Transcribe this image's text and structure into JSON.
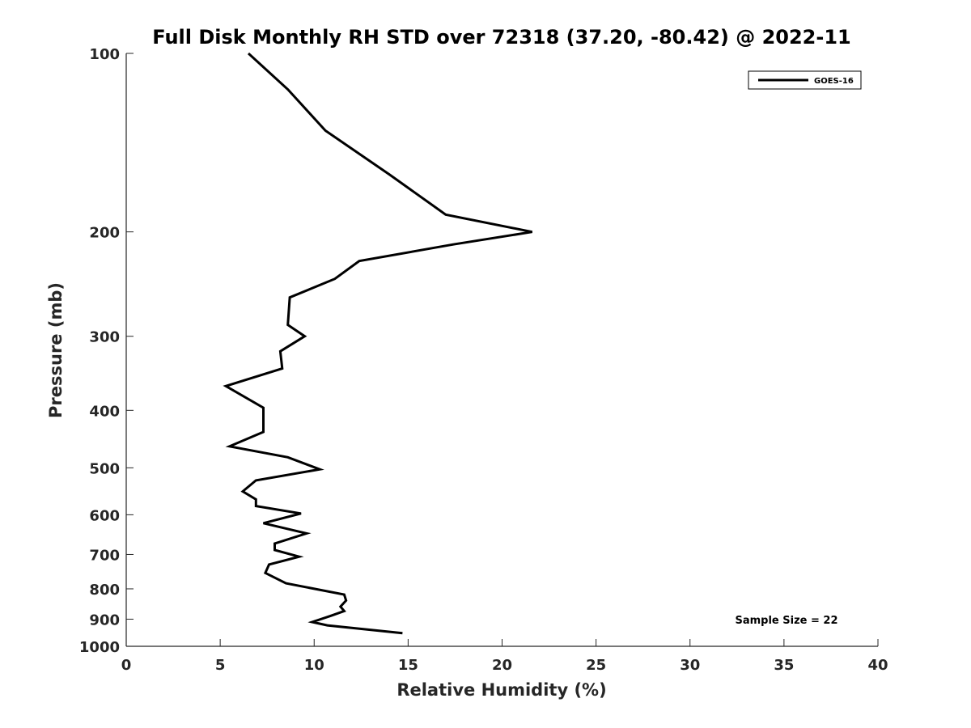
{
  "chart_data": {
    "type": "line",
    "title": "Full Disk Monthly RH STD over 72318 (37.20, -80.42) @ 2022-11",
    "xlabel": "Relative Humidity (%)",
    "ylabel": "Pressure (mb)",
    "xlim": [
      0,
      40
    ],
    "ylim": [
      100,
      1000
    ],
    "y_scale": "log",
    "y_reversed": true,
    "x_ticks": [
      0,
      5,
      10,
      15,
      20,
      25,
      30,
      35,
      40
    ],
    "y_ticks": [
      100,
      200,
      300,
      400,
      500,
      600,
      700,
      800,
      900,
      1000
    ],
    "grid": false,
    "legend": {
      "position": "top-right",
      "entries": [
        "GOES-16"
      ]
    },
    "annotation": "Sample Size = 22",
    "series": [
      {
        "name": "GOES-16",
        "color": "#000000",
        "points": [
          [
            6.5,
            100
          ],
          [
            8.6,
            115
          ],
          [
            10.6,
            135
          ],
          [
            14.0,
            160
          ],
          [
            17.0,
            187
          ],
          [
            21.6,
            200
          ],
          [
            17.4,
            210
          ],
          [
            12.4,
            224
          ],
          [
            11.1,
            240
          ],
          [
            8.7,
            258
          ],
          [
            8.6,
            287
          ],
          [
            9.5,
            300
          ],
          [
            8.2,
            318
          ],
          [
            8.3,
            340
          ],
          [
            5.3,
            364
          ],
          [
            7.3,
            396
          ],
          [
            7.3,
            435
          ],
          [
            5.5,
            460
          ],
          [
            8.6,
            480
          ],
          [
            10.3,
            503
          ],
          [
            6.9,
            525
          ],
          [
            6.2,
            548
          ],
          [
            6.9,
            565
          ],
          [
            6.9,
            580
          ],
          [
            9.3,
            597
          ],
          [
            7.3,
            620
          ],
          [
            9.6,
            645
          ],
          [
            7.9,
            671
          ],
          [
            7.9,
            688
          ],
          [
            9.2,
            706
          ],
          [
            7.6,
            728
          ],
          [
            7.4,
            752
          ],
          [
            8.5,
            783
          ],
          [
            11.6,
            818
          ],
          [
            11.7,
            837
          ],
          [
            11.4,
            857
          ],
          [
            11.6,
            872
          ],
          [
            10.9,
            888
          ],
          [
            9.9,
            910
          ],
          [
            10.7,
            922
          ],
          [
            14.7,
            950
          ]
        ]
      }
    ]
  }
}
